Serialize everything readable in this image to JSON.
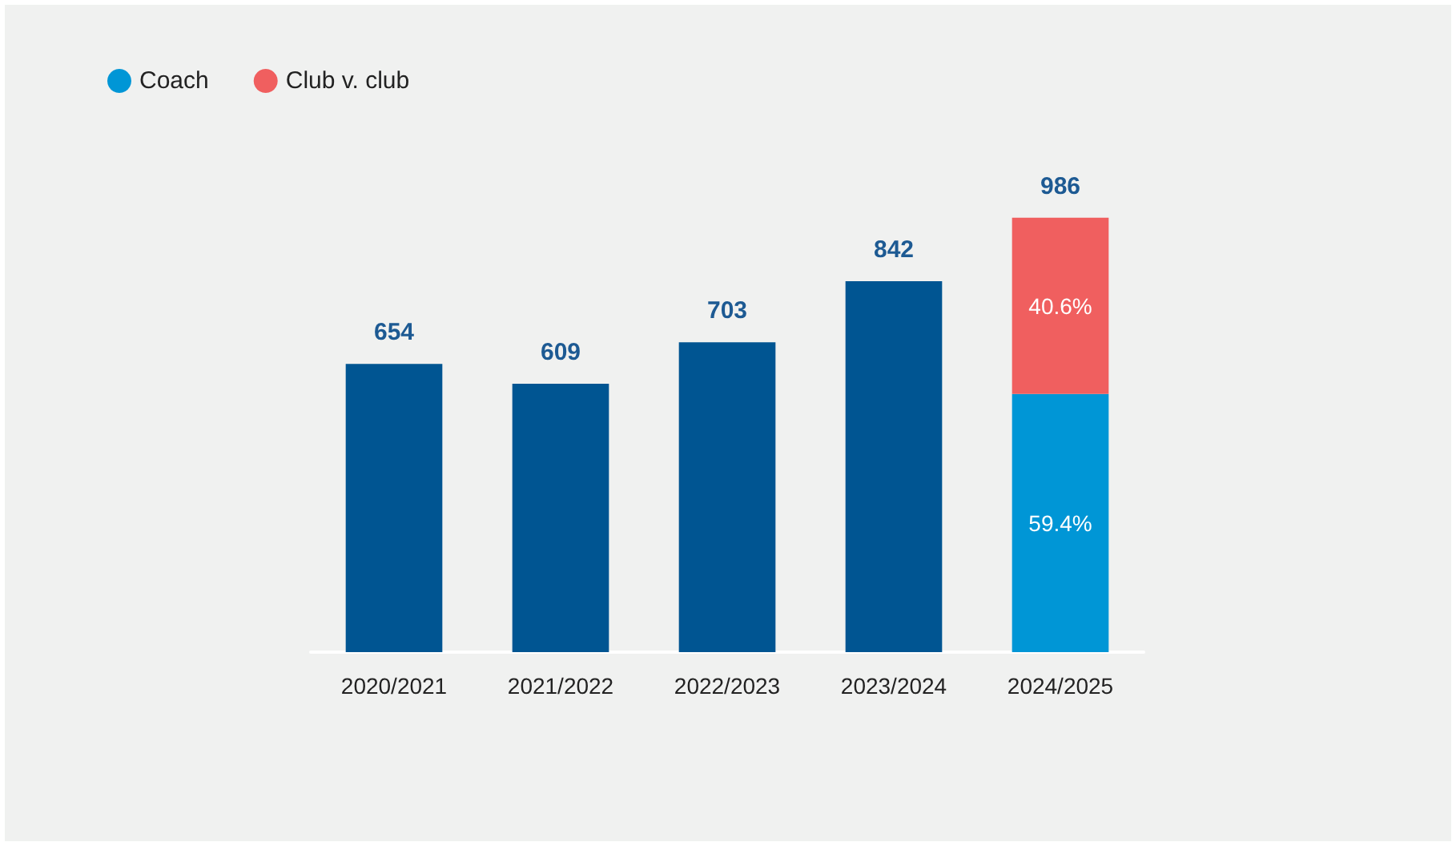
{
  "chart_data": {
    "type": "bar",
    "stacked": true,
    "categories": [
      "2020/2021",
      "2021/2022",
      "2022/2023",
      "2023/2024",
      "2024/2025"
    ],
    "series": [
      {
        "color": "#005592",
        "values": [
          654,
          609,
          703,
          842,
          null
        ],
        "value_labels": [
          "654",
          "609",
          "703",
          "842",
          null
        ]
      },
      {
        "name": "Coach",
        "color": "#0096d6",
        "values": [
          null,
          null,
          null,
          null,
          586
        ]
      },
      {
        "name": "Club v. club",
        "color": "#f05f5f",
        "values": [
          null,
          null,
          null,
          null,
          400
        ]
      }
    ],
    "totals": [
      null,
      null,
      null,
      null,
      "986"
    ],
    "annotations": [
      "59.4%",
      "40.6%"
    ],
    "legend": "top left"
  }
}
